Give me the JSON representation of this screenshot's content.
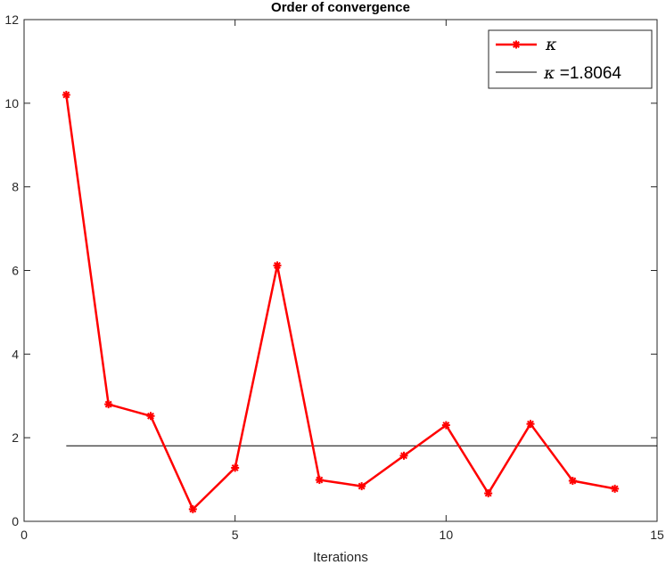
{
  "chart_data": {
    "type": "line",
    "title": "Order of convergence",
    "xlabel": "Iterations",
    "ylabel": "",
    "xlim": [
      0,
      15
    ],
    "ylim": [
      0,
      12
    ],
    "xticks": [
      0,
      5,
      10,
      15
    ],
    "yticks": [
      0,
      2,
      4,
      6,
      8,
      10,
      12
    ],
    "grid": false,
    "legend_position": "top-right",
    "series": [
      {
        "name": "κ",
        "color": "#ff0000",
        "marker": "asterisk",
        "x": [
          1,
          2,
          3,
          4,
          5,
          6,
          7,
          8,
          9,
          10,
          11,
          12,
          13,
          14
        ],
        "y": [
          10.2,
          2.8,
          2.52,
          0.29,
          1.28,
          6.12,
          0.99,
          0.84,
          1.57,
          2.3,
          0.67,
          2.33,
          0.97,
          0.78
        ]
      },
      {
        "name": "κ =1.8064",
        "color": "#000000",
        "marker": "none",
        "x": [
          1,
          15
        ],
        "y": [
          1.8064,
          1.8064
        ]
      }
    ],
    "legend": [
      {
        "symbol": "κ",
        "text": ""
      },
      {
        "symbol": "κ",
        "text": " =1.8064"
      }
    ]
  }
}
